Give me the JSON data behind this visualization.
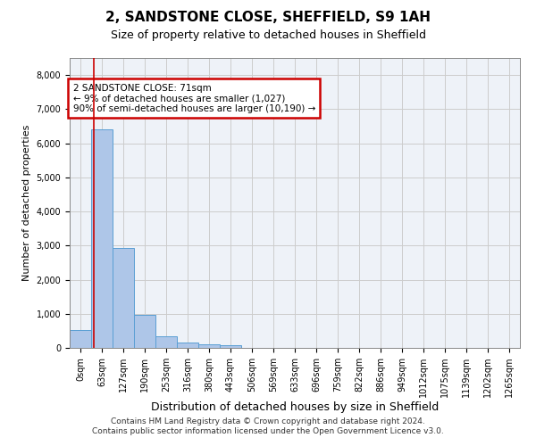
{
  "title": "2, SANDSTONE CLOSE, SHEFFIELD, S9 1AH",
  "subtitle": "Size of property relative to detached houses in Sheffield",
  "xlabel": "Distribution of detached houses by size in Sheffield",
  "ylabel": "Number of detached properties",
  "footer_line1": "Contains HM Land Registry data © Crown copyright and database right 2024.",
  "footer_line2": "Contains public sector information licensed under the Open Government Licence v3.0.",
  "bar_labels": [
    "0sqm",
    "63sqm",
    "127sqm",
    "190sqm",
    "253sqm",
    "316sqm",
    "380sqm",
    "443sqm",
    "506sqm",
    "569sqm",
    "633sqm",
    "696sqm",
    "759sqm",
    "822sqm",
    "886sqm",
    "949sqm",
    "1012sqm",
    "1075sqm",
    "1139sqm",
    "1202sqm",
    "1265sqm"
  ],
  "bar_values": [
    530,
    6420,
    2920,
    960,
    330,
    155,
    115,
    75,
    0,
    0,
    0,
    0,
    0,
    0,
    0,
    0,
    0,
    0,
    0,
    0,
    0
  ],
  "bar_color": "#aec6e8",
  "bar_edge_color": "#5a9fd4",
  "grid_color": "#cccccc",
  "bg_color": "#eef2f8",
  "annotation_text": "2 SANDSTONE CLOSE: 71sqm\n← 9% of detached houses are smaller (1,027)\n90% of semi-detached houses are larger (10,190) →",
  "annotation_box_color": "#cc0000",
  "ylim": [
    0,
    8500
  ],
  "yticks": [
    0,
    1000,
    2000,
    3000,
    4000,
    5000,
    6000,
    7000,
    8000
  ]
}
